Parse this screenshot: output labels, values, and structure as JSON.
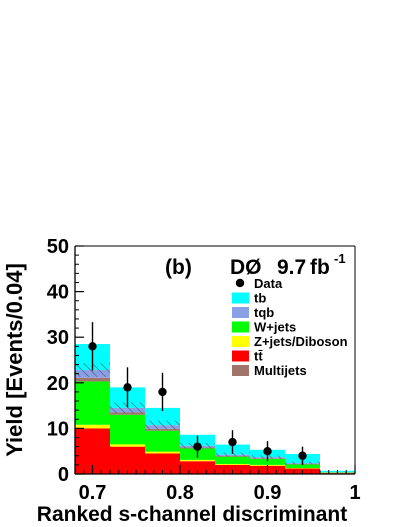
{
  "chart_data": {
    "type": "bar",
    "stacked": true,
    "panel_tag": "(b)",
    "experiment": "DØ",
    "luminosity_value": "9.7",
    "luminosity_unit": "fb",
    "luminosity_exponent": "-1",
    "xlabel": "Ranked s-channel discriminant",
    "ylabel": "Yield [Events/0.04]",
    "xlim": [
      0.68,
      1.0
    ],
    "ylim": [
      0,
      50
    ],
    "x_ticks": [
      0.7,
      0.8,
      0.9,
      1.0
    ],
    "x_tick_labels": [
      "0.7",
      "0.8",
      "0.9",
      "1"
    ],
    "y_ticks": [
      0,
      10,
      20,
      30,
      40,
      50
    ],
    "y_tick_labels": [
      "0",
      "10",
      "20",
      "30",
      "40",
      "50"
    ],
    "bin_edges": [
      0.68,
      0.72,
      0.76,
      0.8,
      0.84,
      0.88,
      0.92,
      0.96,
      1.0
    ],
    "series": [
      {
        "name": "tt̄",
        "color": "#ff0000",
        "values": [
          10,
          6,
          4.5,
          2.8,
          2.0,
          1.8,
          1.2,
          0.2
        ]
      },
      {
        "name": "Z+jets/Diboson",
        "color": "#ffff00",
        "values": [
          0.8,
          0.5,
          0.4,
          0.3,
          0.2,
          0.2,
          0.1,
          0.05
        ]
      },
      {
        "name": "W+jets",
        "color": "#00ff00",
        "values": [
          9.5,
          6.5,
          4.6,
          2.5,
          1.6,
          1.3,
          0.8,
          0.1
        ]
      },
      {
        "name": "Multijets",
        "color": "#a0736b",
        "values": [
          0.8,
          0.5,
          0.4,
          0.2,
          0.15,
          0.15,
          0.1,
          0.03
        ]
      },
      {
        "name": "tqb",
        "color": "#8aa0e6",
        "values": [
          1.7,
          1.0,
          0.8,
          0.4,
          0.3,
          0.25,
          0.2,
          0.05
        ]
      },
      {
        "name": "tb",
        "color": "#00ffff",
        "values": [
          5.7,
          4.5,
          3.8,
          2.4,
          2.2,
          1.6,
          2.0,
          0.27
        ]
      }
    ],
    "uncertainty_band": {
      "half_width": [
        1.5,
        1.2,
        1.0,
        0.6,
        0.5,
        0.4,
        0.3,
        0.1
      ]
    },
    "data": {
      "name": "Data",
      "x": [
        0.7,
        0.74,
        0.78,
        0.82,
        0.86,
        0.9,
        0.94
      ],
      "y": [
        28,
        19,
        18,
        6,
        7,
        5,
        4
      ],
      "err": [
        5.3,
        4.4,
        4.2,
        2.4,
        2.6,
        2.2,
        2.0
      ]
    },
    "legend": {
      "position": "top-right",
      "entries": [
        {
          "label": "Data",
          "kind": "marker",
          "color": "#000000"
        },
        {
          "label": "tb",
          "kind": "box",
          "color": "#00ffff"
        },
        {
          "label": "tqb",
          "kind": "box",
          "color": "#8aa0e6"
        },
        {
          "label": "W+jets",
          "kind": "box",
          "color": "#00ff00"
        },
        {
          "label": "Z+jets/Diboson",
          "kind": "box",
          "color": "#ffff00"
        },
        {
          "label": "tt̄",
          "kind": "box",
          "color": "#ff0000"
        },
        {
          "label": "Multijets",
          "kind": "box",
          "color": "#a0736b"
        }
      ]
    },
    "grid": false
  }
}
